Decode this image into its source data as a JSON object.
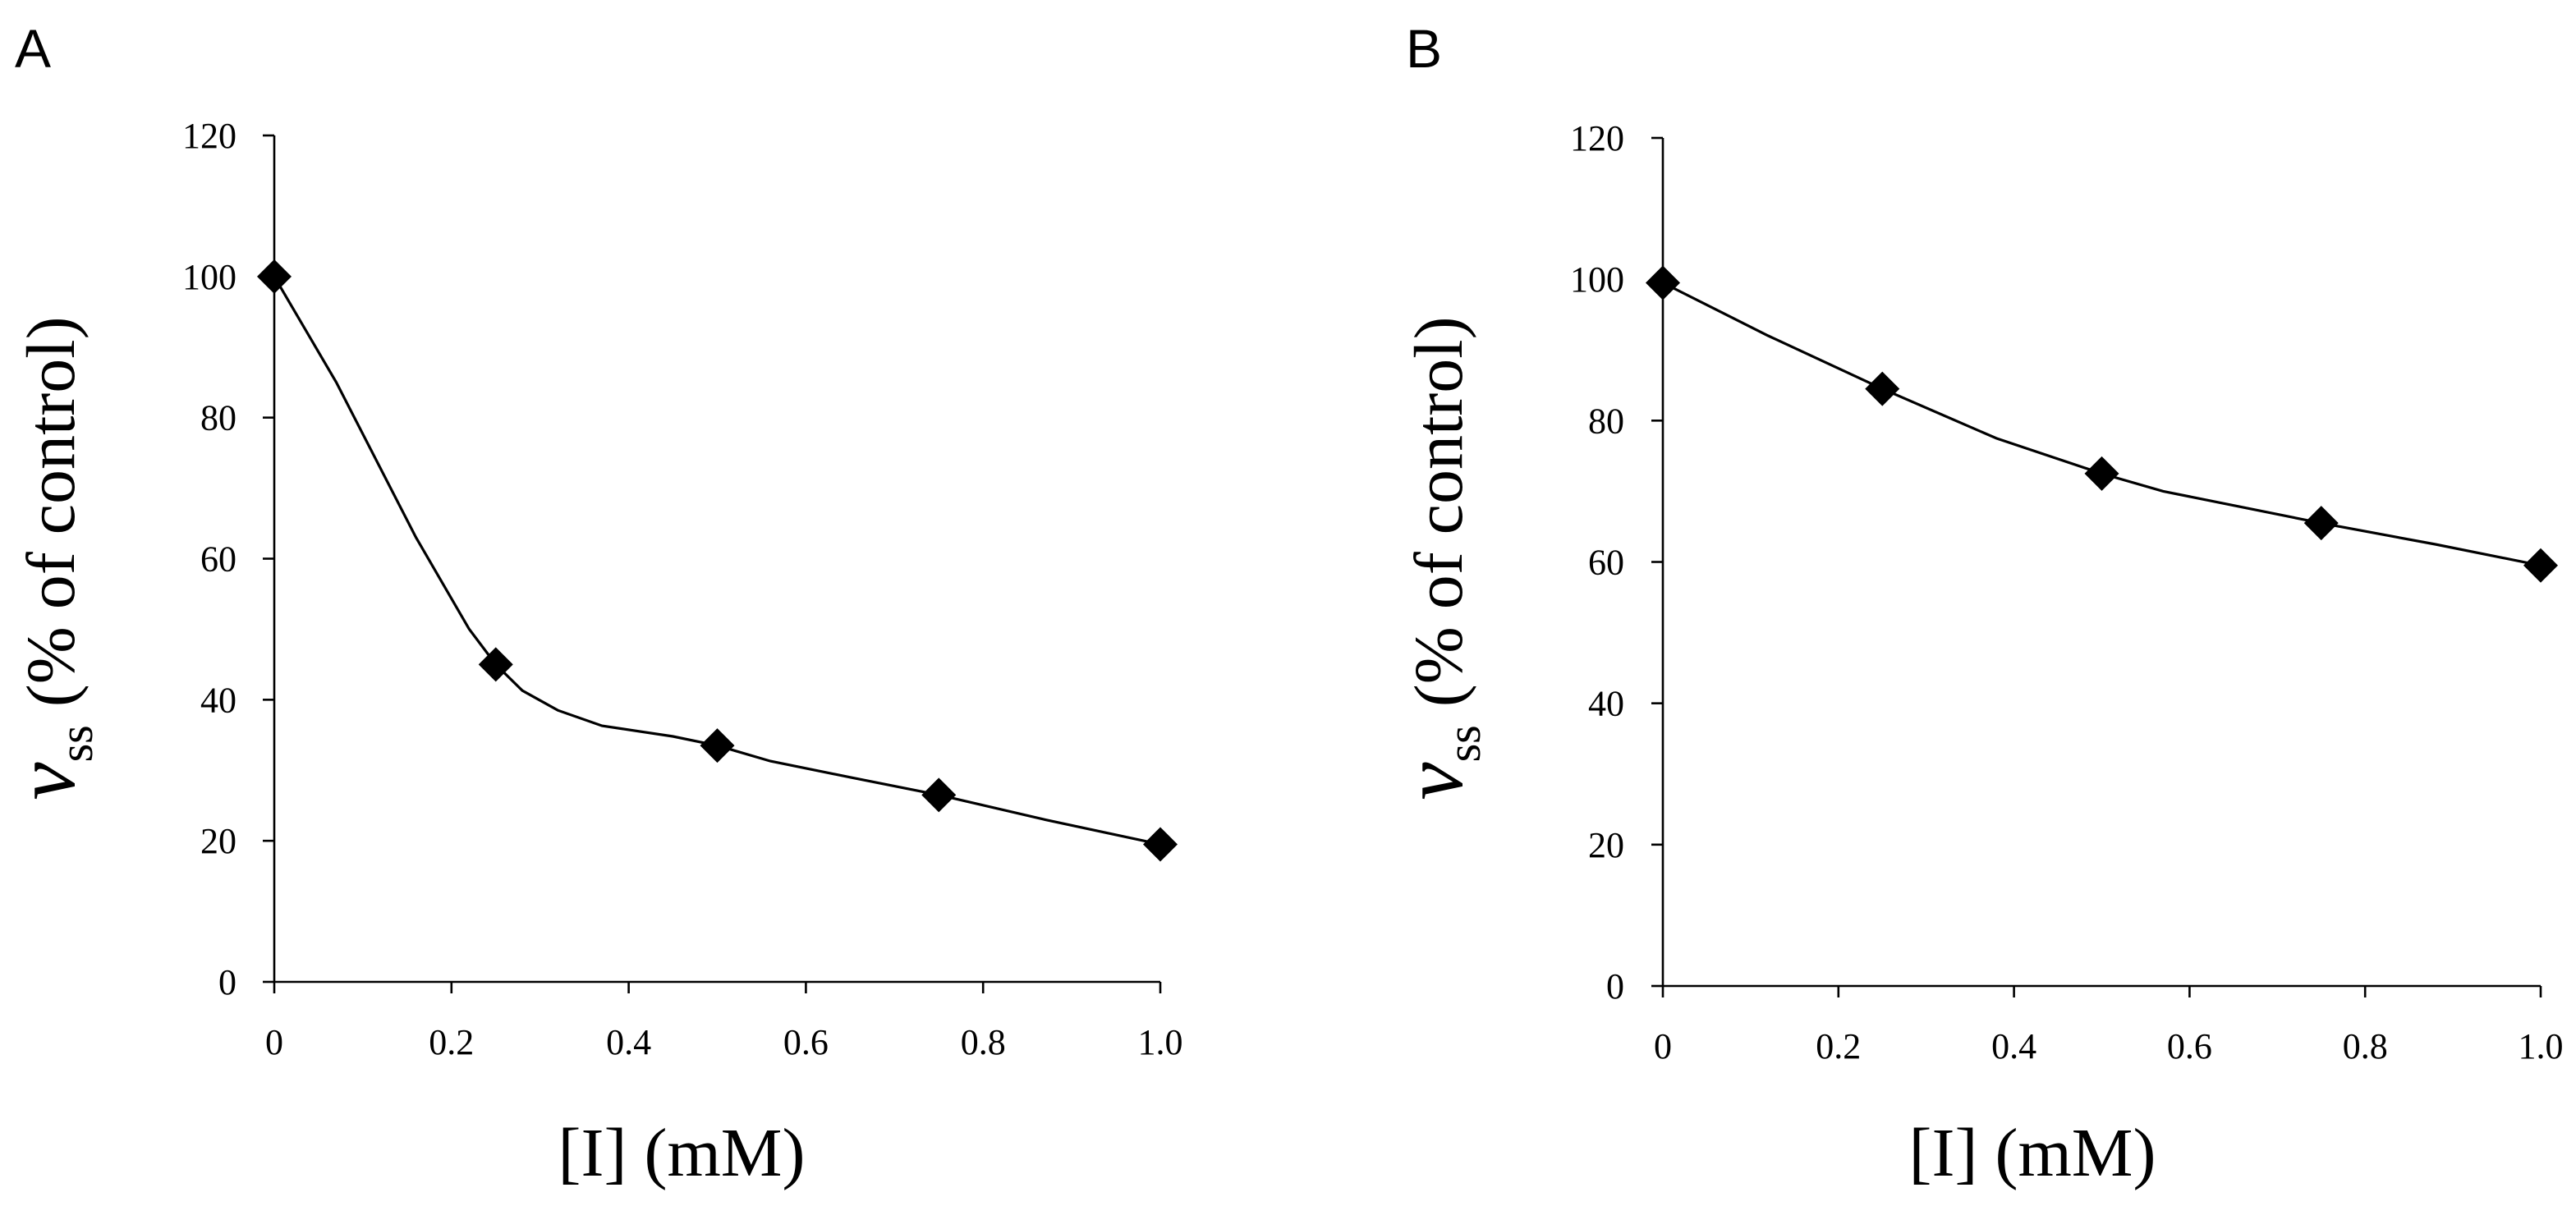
{
  "chart_data": [
    {
      "type": "line",
      "panel_label": "A",
      "x": [
        0,
        0.25,
        0.5,
        0.75,
        1.0
      ],
      "series": [
        {
          "name": "vss",
          "marker": "diamond",
          "values": [
            100,
            45,
            33.5,
            26.5,
            19.5
          ]
        }
      ],
      "curve": {
        "x": [
          0,
          0.07,
          0.16,
          0.22,
          0.25,
          0.28,
          0.32,
          0.37,
          0.45,
          0.5,
          0.56,
          0.65,
          0.75,
          0.87,
          1.0
        ],
        "y": [
          100,
          85,
          63,
          50,
          45,
          41.3,
          38.5,
          36.3,
          34.8,
          33.5,
          31.3,
          29,
          26.5,
          23,
          19.5
        ]
      },
      "xlabel": "[I] (mM)",
      "ylabel_var": "v",
      "ylabel_sub": "ss",
      "ylabel_rest": "(% of control)",
      "xlim": [
        0,
        1.0
      ],
      "ylim": [
        0,
        120
      ],
      "xticks": [
        0,
        0.2,
        0.4,
        0.6,
        0.8,
        1.0
      ],
      "xtick_labels": [
        "0",
        "0.2",
        "0.4",
        "0.6",
        "0.8",
        "1.0"
      ],
      "yticks": [
        0,
        20,
        40,
        60,
        80,
        100,
        120
      ],
      "ytick_labels": [
        "0",
        "20",
        "40",
        "60",
        "80",
        "100",
        "120"
      ],
      "grid": false
    },
    {
      "type": "line",
      "panel_label": "B",
      "x": [
        0,
        0.25,
        0.5,
        0.75,
        1.0
      ],
      "series": [
        {
          "name": "vss",
          "marker": "diamond",
          "values": [
            99.5,
            84.5,
            72.5,
            65.5,
            59.5
          ]
        }
      ],
      "curve": {
        "x": [
          0,
          0.12,
          0.25,
          0.38,
          0.5,
          0.57,
          0.75,
          0.88,
          1.0
        ],
        "y": [
          99.5,
          92,
          84.5,
          77.5,
          72.5,
          70,
          65.5,
          62.5,
          59.5
        ]
      },
      "xlabel": "[I] (mM)",
      "ylabel_var": "v",
      "ylabel_sub": "ss",
      "ylabel_rest": "(% of control)",
      "xlim": [
        0,
        1.0
      ],
      "ylim": [
        0,
        120
      ],
      "xticks": [
        0,
        0.2,
        0.4,
        0.6,
        0.8,
        1.0
      ],
      "xtick_labels": [
        "0",
        "0.2",
        "0.4",
        "0.6",
        "0.8",
        "1.0"
      ],
      "yticks": [
        0,
        20,
        40,
        60,
        80,
        100,
        120
      ],
      "ytick_labels": [
        "0",
        "20",
        "40",
        "60",
        "80",
        "100",
        "120"
      ],
      "grid": false
    }
  ]
}
